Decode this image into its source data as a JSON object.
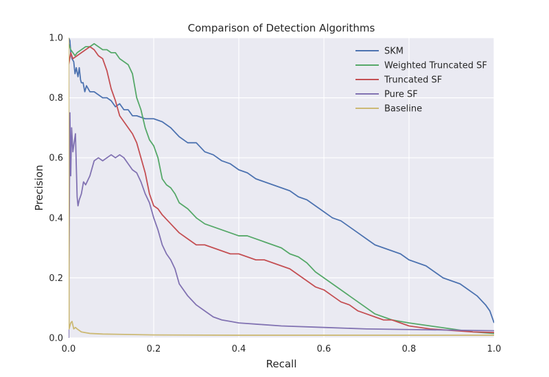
{
  "chart_data": {
    "type": "line",
    "title": "Comparison of Detection Algorithms",
    "xlabel": "Recall",
    "ylabel": "Precision",
    "xlim": [
      0,
      1
    ],
    "ylim": [
      0,
      1
    ],
    "xticks": [
      "0.0",
      "0.2",
      "0.4",
      "0.6",
      "0.8",
      "1.0"
    ],
    "yticks": [
      "0.0",
      "0.2",
      "0.4",
      "0.6",
      "0.8",
      "1.0"
    ],
    "grid": true,
    "legend": "top-right",
    "series": [
      {
        "name": "SKM",
        "color": "#4c72b0",
        "x": [
          0.0,
          0.003,
          0.005,
          0.008,
          0.012,
          0.015,
          0.018,
          0.022,
          0.025,
          0.028,
          0.03,
          0.034,
          0.038,
          0.042,
          0.05,
          0.06,
          0.07,
          0.08,
          0.09,
          0.1,
          0.11,
          0.12,
          0.13,
          0.14,
          0.15,
          0.16,
          0.18,
          0.2,
          0.22,
          0.24,
          0.26,
          0.28,
          0.3,
          0.32,
          0.34,
          0.36,
          0.38,
          0.4,
          0.42,
          0.44,
          0.46,
          0.48,
          0.5,
          0.52,
          0.54,
          0.56,
          0.58,
          0.6,
          0.62,
          0.64,
          0.66,
          0.68,
          0.7,
          0.72,
          0.74,
          0.76,
          0.78,
          0.8,
          0.82,
          0.84,
          0.86,
          0.88,
          0.9,
          0.92,
          0.94,
          0.96,
          0.98,
          0.99,
          1.0
        ],
        "y": [
          1.0,
          0.99,
          0.95,
          0.93,
          0.92,
          0.88,
          0.9,
          0.87,
          0.9,
          0.86,
          0.85,
          0.85,
          0.82,
          0.84,
          0.82,
          0.82,
          0.81,
          0.8,
          0.8,
          0.79,
          0.77,
          0.78,
          0.76,
          0.76,
          0.74,
          0.74,
          0.73,
          0.73,
          0.72,
          0.7,
          0.67,
          0.65,
          0.65,
          0.62,
          0.61,
          0.59,
          0.58,
          0.56,
          0.55,
          0.53,
          0.52,
          0.51,
          0.5,
          0.49,
          0.47,
          0.46,
          0.44,
          0.42,
          0.4,
          0.39,
          0.37,
          0.35,
          0.33,
          0.31,
          0.3,
          0.29,
          0.28,
          0.26,
          0.25,
          0.24,
          0.22,
          0.2,
          0.19,
          0.18,
          0.16,
          0.14,
          0.11,
          0.09,
          0.05
        ]
      },
      {
        "name": "Weighted Truncated SF",
        "color": "#55a868",
        "x": [
          0.0,
          0.005,
          0.01,
          0.015,
          0.02,
          0.03,
          0.04,
          0.05,
          0.06,
          0.07,
          0.08,
          0.09,
          0.1,
          0.11,
          0.12,
          0.13,
          0.14,
          0.15,
          0.16,
          0.17,
          0.18,
          0.19,
          0.2,
          0.21,
          0.22,
          0.23,
          0.24,
          0.25,
          0.26,
          0.28,
          0.3,
          0.32,
          0.34,
          0.36,
          0.38,
          0.4,
          0.42,
          0.44,
          0.46,
          0.48,
          0.5,
          0.52,
          0.54,
          0.56,
          0.58,
          0.6,
          0.62,
          0.64,
          0.66,
          0.68,
          0.7,
          0.72,
          0.74,
          0.76,
          0.8,
          0.85,
          0.9,
          0.95,
          1.0
        ],
        "y": [
          0.98,
          0.96,
          0.95,
          0.94,
          0.95,
          0.96,
          0.97,
          0.97,
          0.98,
          0.97,
          0.96,
          0.96,
          0.95,
          0.95,
          0.93,
          0.92,
          0.91,
          0.88,
          0.8,
          0.76,
          0.7,
          0.66,
          0.64,
          0.6,
          0.53,
          0.51,
          0.5,
          0.48,
          0.45,
          0.43,
          0.4,
          0.38,
          0.37,
          0.36,
          0.35,
          0.34,
          0.34,
          0.33,
          0.32,
          0.31,
          0.3,
          0.28,
          0.27,
          0.25,
          0.22,
          0.2,
          0.18,
          0.16,
          0.14,
          0.12,
          0.1,
          0.08,
          0.07,
          0.06,
          0.05,
          0.04,
          0.03,
          0.02,
          0.015
        ]
      },
      {
        "name": "Truncated SF",
        "color": "#c44e52",
        "x": [
          0.0,
          0.005,
          0.01,
          0.02,
          0.03,
          0.04,
          0.05,
          0.06,
          0.07,
          0.08,
          0.09,
          0.1,
          0.11,
          0.12,
          0.13,
          0.14,
          0.15,
          0.16,
          0.17,
          0.18,
          0.19,
          0.2,
          0.21,
          0.22,
          0.24,
          0.26,
          0.28,
          0.3,
          0.32,
          0.34,
          0.36,
          0.38,
          0.4,
          0.42,
          0.44,
          0.46,
          0.48,
          0.5,
          0.52,
          0.54,
          0.56,
          0.58,
          0.6,
          0.62,
          0.64,
          0.66,
          0.68,
          0.7,
          0.72,
          0.74,
          0.76,
          0.78,
          0.8,
          0.85,
          0.9,
          0.95,
          1.0
        ],
        "y": [
          0.91,
          0.95,
          0.93,
          0.94,
          0.95,
          0.96,
          0.97,
          0.96,
          0.94,
          0.93,
          0.89,
          0.83,
          0.79,
          0.74,
          0.72,
          0.7,
          0.68,
          0.65,
          0.6,
          0.55,
          0.48,
          0.44,
          0.43,
          0.41,
          0.38,
          0.35,
          0.33,
          0.31,
          0.31,
          0.3,
          0.29,
          0.28,
          0.28,
          0.27,
          0.26,
          0.26,
          0.25,
          0.24,
          0.23,
          0.21,
          0.19,
          0.17,
          0.16,
          0.14,
          0.12,
          0.11,
          0.09,
          0.08,
          0.07,
          0.06,
          0.06,
          0.05,
          0.04,
          0.03,
          0.025,
          0.02,
          0.018
        ]
      },
      {
        "name": "Pure SF",
        "color": "#8172b2",
        "x": [
          0.0,
          0.003,
          0.005,
          0.007,
          0.01,
          0.013,
          0.016,
          0.02,
          0.022,
          0.025,
          0.03,
          0.035,
          0.04,
          0.05,
          0.06,
          0.07,
          0.08,
          0.09,
          0.1,
          0.11,
          0.12,
          0.13,
          0.14,
          0.15,
          0.16,
          0.17,
          0.18,
          0.19,
          0.2,
          0.21,
          0.22,
          0.23,
          0.24,
          0.25,
          0.26,
          0.28,
          0.3,
          0.32,
          0.34,
          0.36,
          0.38,
          0.4,
          0.45,
          0.5,
          0.6,
          0.7,
          0.8,
          0.9,
          1.0
        ],
        "y": [
          0.0,
          0.75,
          0.54,
          0.7,
          0.62,
          0.65,
          0.68,
          0.47,
          0.44,
          0.46,
          0.48,
          0.52,
          0.51,
          0.54,
          0.59,
          0.6,
          0.59,
          0.6,
          0.61,
          0.6,
          0.61,
          0.6,
          0.58,
          0.56,
          0.55,
          0.52,
          0.48,
          0.45,
          0.4,
          0.36,
          0.31,
          0.28,
          0.26,
          0.23,
          0.18,
          0.14,
          0.11,
          0.09,
          0.07,
          0.06,
          0.055,
          0.05,
          0.045,
          0.04,
          0.035,
          0.03,
          0.028,
          0.026,
          0.024
        ]
      },
      {
        "name": "Baseline",
        "color": "#ccb974",
        "x": [
          0.0,
          0.001,
          0.003,
          0.005,
          0.008,
          0.012,
          0.016,
          0.02,
          0.03,
          0.05,
          0.08,
          0.12,
          0.2,
          0.4,
          0.6,
          0.8,
          1.0
        ],
        "y": [
          1.0,
          0.03,
          0.04,
          0.05,
          0.055,
          0.03,
          0.035,
          0.03,
          0.02,
          0.015,
          0.013,
          0.012,
          0.01,
          0.009,
          0.009,
          0.009,
          0.009
        ]
      }
    ]
  }
}
